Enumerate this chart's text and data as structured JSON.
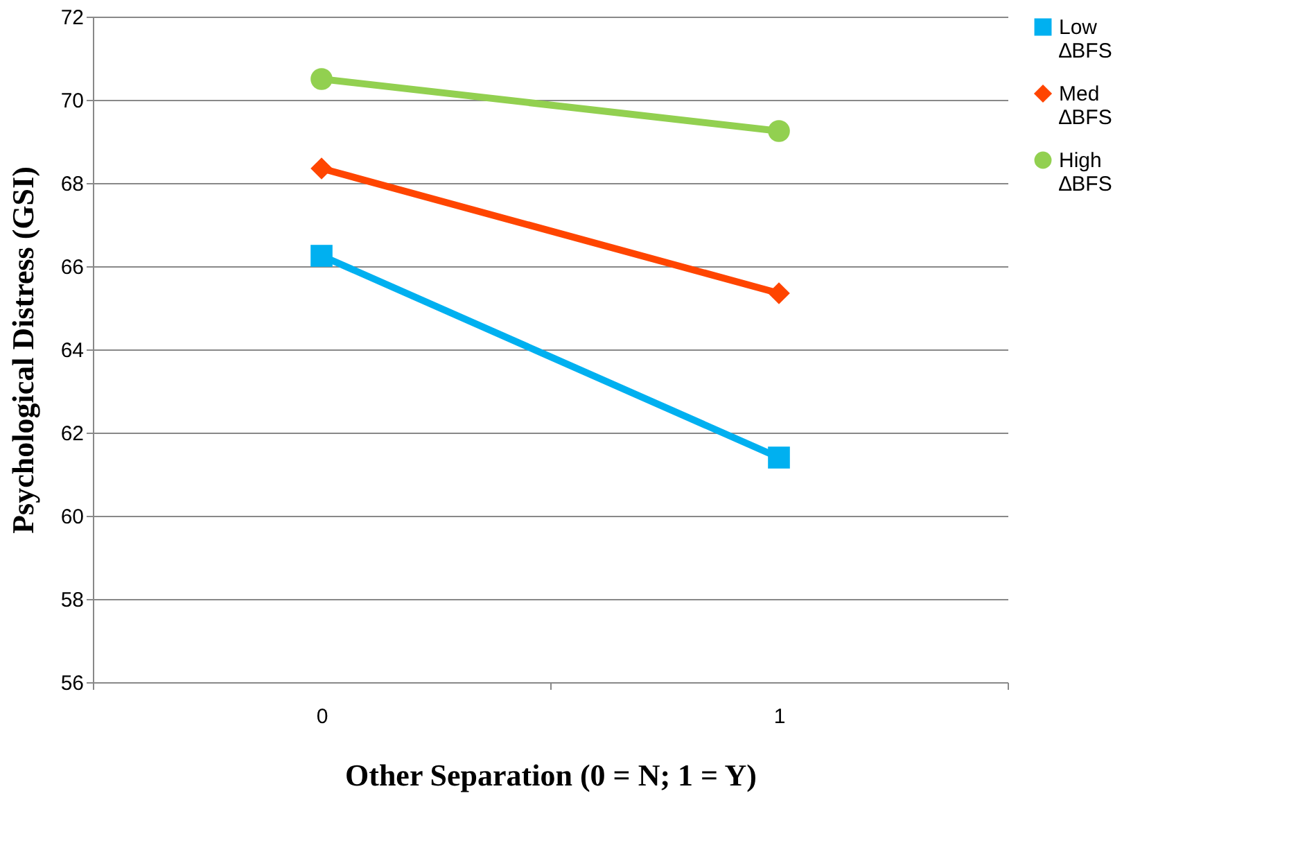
{
  "chart_data": {
    "type": "line",
    "xlabel": "Other Separation (0 = N; 1 = Y)",
    "ylabel": "Psychological Distress (GSI)",
    "categories": [
      "0",
      "1"
    ],
    "series": [
      {
        "name": "Low ∆BFS",
        "color": "#00b0f0",
        "marker": "square",
        "values": [
          66.25,
          61.4
        ]
      },
      {
        "name": "Med ∆BFS",
        "color": "#ff4500",
        "marker": "diamond",
        "values": [
          68.35,
          65.35
        ]
      },
      {
        "name": "High ∆BFS",
        "color": "#92d050",
        "marker": "circle",
        "values": [
          70.5,
          69.25
        ]
      }
    ],
    "ylim": [
      56,
      72
    ],
    "yticks": [
      56,
      58,
      60,
      62,
      64,
      66,
      68,
      70,
      72
    ],
    "grid": "y",
    "legend": "right"
  }
}
